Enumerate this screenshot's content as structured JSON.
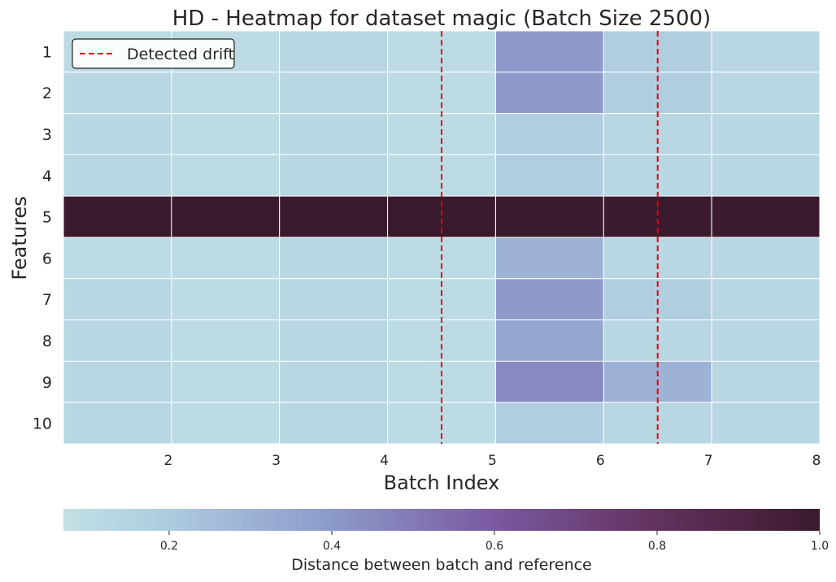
{
  "chart_data": {
    "type": "heatmap",
    "title": "HD - Heatmap for dataset magic (Batch Size 2500)",
    "xlabel": "Batch Index",
    "ylabel": "Features",
    "x_ticks": [
      "2",
      "3",
      "4",
      "5",
      "6",
      "7",
      "8"
    ],
    "rows": [
      "1",
      "2",
      "3",
      "4",
      "5",
      "6",
      "7",
      "8",
      "9",
      "10"
    ],
    "columns": 7,
    "values": [
      [
        0.1,
        0.1,
        0.13,
        0.1,
        0.4,
        0.18,
        0.13
      ],
      [
        0.13,
        0.1,
        0.13,
        0.1,
        0.4,
        0.18,
        0.13
      ],
      [
        0.13,
        0.1,
        0.13,
        0.1,
        0.18,
        0.13,
        0.13
      ],
      [
        0.13,
        0.1,
        0.13,
        0.1,
        0.18,
        0.13,
        0.13
      ],
      [
        1.0,
        1.0,
        1.0,
        1.0,
        1.0,
        1.0,
        1.0
      ],
      [
        0.1,
        0.1,
        0.13,
        0.1,
        0.3,
        0.13,
        0.13
      ],
      [
        0.13,
        0.1,
        0.13,
        0.1,
        0.4,
        0.18,
        0.13
      ],
      [
        0.13,
        0.1,
        0.13,
        0.1,
        0.35,
        0.13,
        0.13
      ],
      [
        0.13,
        0.1,
        0.13,
        0.1,
        0.45,
        0.3,
        0.13
      ],
      [
        0.13,
        0.1,
        0.13,
        0.1,
        0.18,
        0.13,
        0.13
      ]
    ],
    "drift_lines": [
      4.5,
      6.5
    ],
    "legend": {
      "label": "Detected drift",
      "color": "#e8000b",
      "style": "dashed",
      "placement": "top-left"
    },
    "colorbar": {
      "label": "Distance between batch and reference",
      "range": [
        0.07,
        1.0
      ],
      "ticks": [
        "0.2",
        "0.4",
        "0.6",
        "0.8",
        "1.0"
      ],
      "orientation": "horizontal"
    },
    "grid": true
  }
}
